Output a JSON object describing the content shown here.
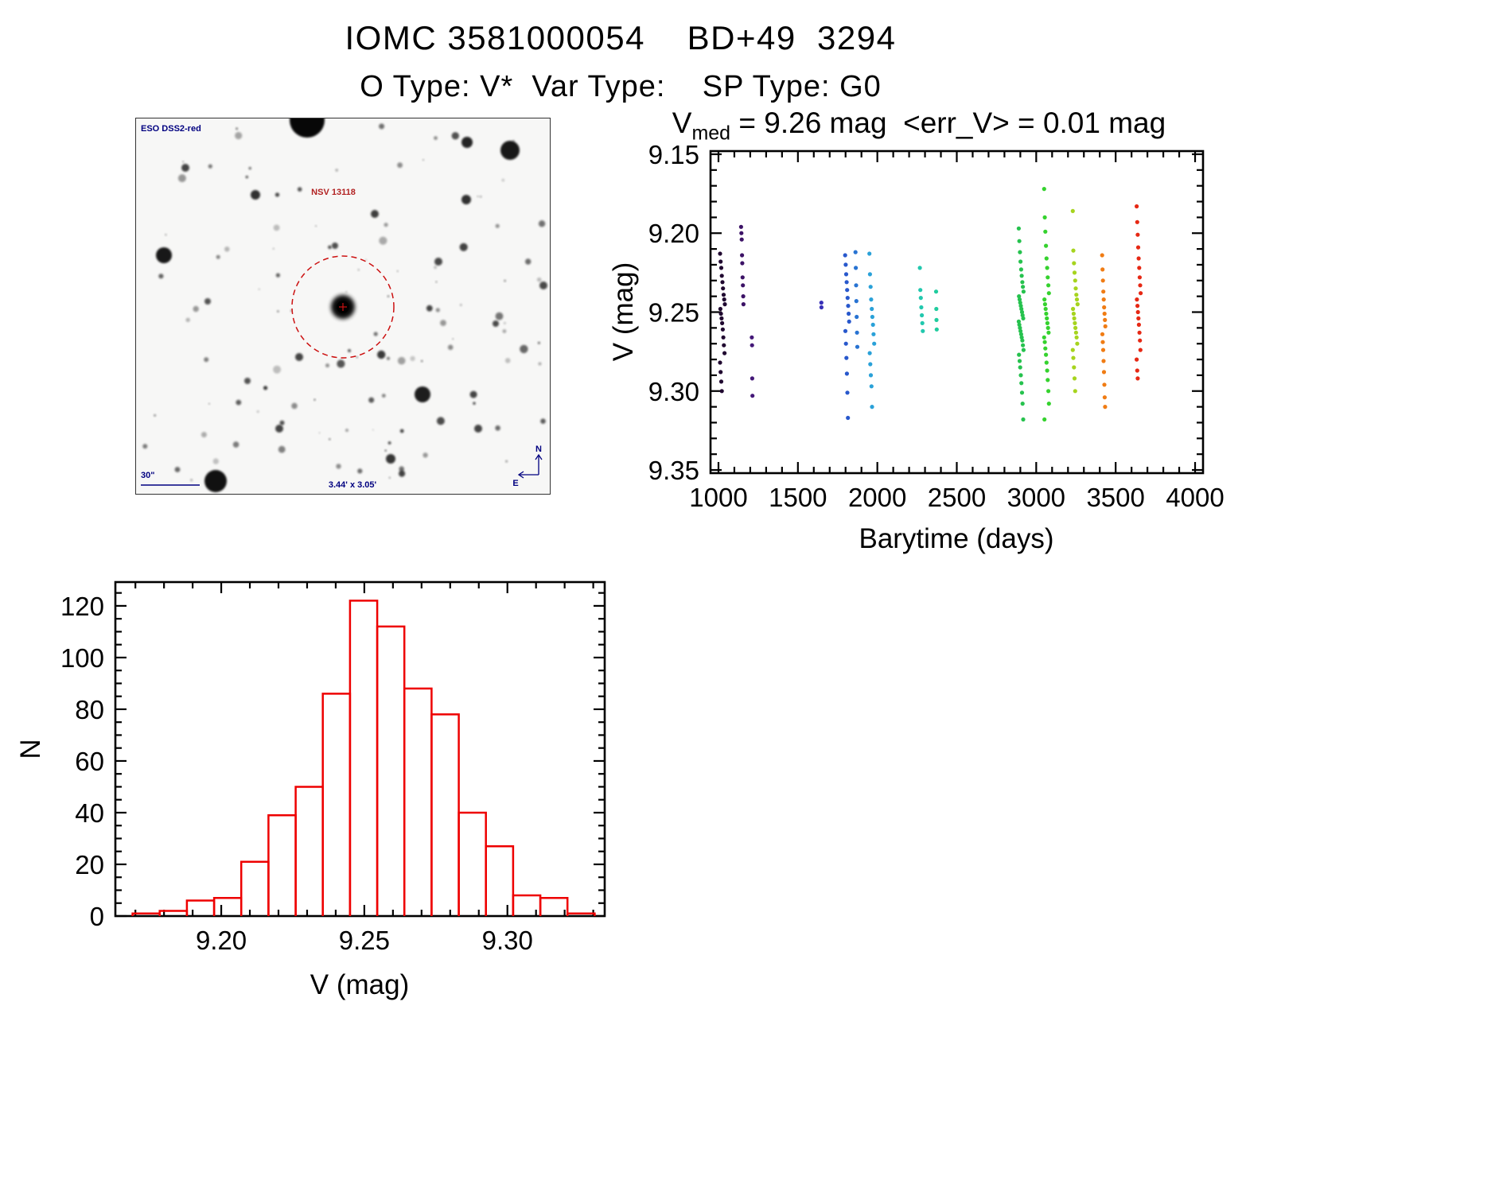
{
  "page": {
    "title_line1": "IOMC 3581000054    BD+49  3294",
    "title_line2": "O Type: V*  Var Type:    SP Type: G0"
  },
  "sky_image": {
    "survey_label": "ESO DSS2-red",
    "target_label": "NSV 13118",
    "scale_bar_label": "30\"",
    "fov_label": "3.44' x 3.05'",
    "compass_north_label": "N",
    "compass_east_label": "E",
    "annotation_color": "#000080",
    "marker_color": "#cc1111"
  },
  "chart_data": [
    {
      "type": "scatter",
      "title": {
        "prefix": "V",
        "sub": "med",
        "rest": " = 9.26 mag  <err_V> = 0.01 mag"
      },
      "v_med_mag": 9.26,
      "err_v_mag": 0.01,
      "xlabel": "Barytime (days)",
      "ylabel": "V (mag)",
      "xlim": [
        950,
        4050
      ],
      "ylim": [
        9.148,
        9.352
      ],
      "y_axis_inverted": true,
      "x_ticks": [
        "1000",
        "1500",
        "2000",
        "2500",
        "3000",
        "3500",
        "4000"
      ],
      "y_ticks": [
        "9.15",
        "9.20",
        "9.25",
        "9.30",
        "9.35"
      ],
      "x_minor_step": 100,
      "y_minor_step": 0.01,
      "series": [
        {
          "name": "epoch-1",
          "x": 1025,
          "spread": 30,
          "color": "#200830",
          "v": [
            9.213,
            9.218,
            9.222,
            9.227,
            9.231,
            9.235,
            9.239,
            9.242,
            9.245,
            9.248,
            9.251,
            9.254,
            9.257,
            9.261,
            9.266,
            9.271,
            9.276,
            9.282,
            9.288,
            9.294,
            9.3
          ]
        },
        {
          "name": "epoch-2",
          "x": 1150,
          "spread": 15,
          "color": "#3c1266",
          "v": [
            9.196,
            9.2,
            9.204,
            9.214,
            9.219,
            9.228,
            9.233,
            9.24,
            9.245
          ]
        },
        {
          "name": "epoch-3",
          "x": 1215,
          "spread": 10,
          "color": "#441878",
          "v": [
            9.266,
            9.271,
            9.292,
            9.303
          ]
        },
        {
          "name": "epoch-4",
          "x": 1650,
          "spread": 5,
          "color": "#3830b8",
          "v": [
            9.244,
            9.247
          ]
        },
        {
          "name": "epoch-5",
          "x": 1810,
          "spread": 25,
          "color": "#2858cc",
          "v": [
            9.214,
            9.22,
            9.226,
            9.231,
            9.236,
            9.241,
            9.246,
            9.251,
            9.256,
            9.262,
            9.27,
            9.279,
            9.289,
            9.301,
            9.317
          ]
        },
        {
          "name": "epoch-6",
          "x": 1870,
          "spread": 15,
          "color": "#2873d2",
          "v": [
            9.212,
            9.222,
            9.233,
            9.243,
            9.253,
            9.263,
            9.272
          ]
        },
        {
          "name": "epoch-7",
          "x": 1965,
          "spread": 30,
          "color": "#2aa1d8",
          "v": [
            9.213,
            9.226,
            9.234,
            9.242,
            9.248,
            9.253,
            9.258,
            9.264,
            9.27,
            9.276,
            9.283,
            9.29,
            9.297,
            9.31
          ]
        },
        {
          "name": "epoch-8",
          "x": 2280,
          "spread": 25,
          "color": "#22c8ae",
          "v": [
            9.222,
            9.236,
            9.241,
            9.247,
            9.252,
            9.257,
            9.262
          ]
        },
        {
          "name": "epoch-9",
          "x": 2375,
          "spread": 10,
          "color": "#20cc9e",
          "v": [
            9.237,
            9.248,
            9.255,
            9.261
          ]
        },
        {
          "name": "epoch-10",
          "x": 2905,
          "spread": 30,
          "color": "#26c24e",
          "v": [
            9.197,
            9.205,
            9.212,
            9.218,
            9.223,
            9.227,
            9.231,
            9.234,
            9.237,
            9.24,
            9.242,
            9.244,
            9.246,
            9.248,
            9.25,
            9.252,
            9.254,
            9.256,
            9.258,
            9.26,
            9.262,
            9.264,
            9.266,
            9.268,
            9.271,
            9.274,
            9.277,
            9.281,
            9.285,
            9.29,
            9.295,
            9.301,
            9.308,
            9.318
          ]
        },
        {
          "name": "epoch-11",
          "x": 3065,
          "spread": 30,
          "color": "#35d22e",
          "v": [
            9.172,
            9.19,
            9.199,
            9.208,
            9.216,
            9.222,
            9.228,
            9.233,
            9.238,
            9.242,
            9.245,
            9.248,
            9.251,
            9.254,
            9.257,
            9.26,
            9.263,
            9.266,
            9.269,
            9.273,
            9.277,
            9.282,
            9.287,
            9.293,
            9.3,
            9.308,
            9.318
          ]
        },
        {
          "name": "epoch-12",
          "x": 3245,
          "spread": 30,
          "color": "#a6d41e",
          "v": [
            9.186,
            9.211,
            9.219,
            9.225,
            9.23,
            9.235,
            9.239,
            9.242,
            9.245,
            9.248,
            9.251,
            9.254,
            9.257,
            9.26,
            9.263,
            9.266,
            9.27,
            9.274,
            9.279,
            9.285,
            9.292,
            9.3
          ]
        },
        {
          "name": "epoch-13",
          "x": 3425,
          "spread": 20,
          "color": "#f07c14",
          "v": [
            9.214,
            9.223,
            9.23,
            9.237,
            9.242,
            9.247,
            9.251,
            9.255,
            9.259,
            9.264,
            9.269,
            9.274,
            9.281,
            9.288,
            9.296,
            9.304,
            9.31
          ]
        },
        {
          "name": "epoch-14",
          "x": 3645,
          "spread": 25,
          "color": "#e62814",
          "v": [
            9.183,
            9.193,
            9.201,
            9.209,
            9.216,
            9.222,
            9.228,
            9.233,
            9.238,
            9.242,
            9.246,
            9.25,
            9.254,
            9.258,
            9.263,
            9.268,
            9.274,
            9.28,
            9.287,
            9.292
          ]
        }
      ]
    },
    {
      "type": "histogram",
      "xlabel": "V (mag)",
      "ylabel": "N",
      "bar_color": "#ee0000",
      "bin_start": 9.169,
      "bin_width": 0.0095,
      "counts": [
        1,
        2,
        6,
        7,
        21,
        39,
        50,
        86,
        122,
        112,
        88,
        78,
        40,
        27,
        8,
        7,
        1
      ],
      "xlim": [
        9.163,
        9.334
      ],
      "ylim": [
        0,
        129.2
      ],
      "x_ticks": [
        "9.20",
        "9.25",
        "9.30"
      ],
      "y_ticks": [
        "0",
        "20",
        "40",
        "60",
        "80",
        "100",
        "120"
      ],
      "x_minor_step": 0.01,
      "y_minor_step": 5
    }
  ]
}
